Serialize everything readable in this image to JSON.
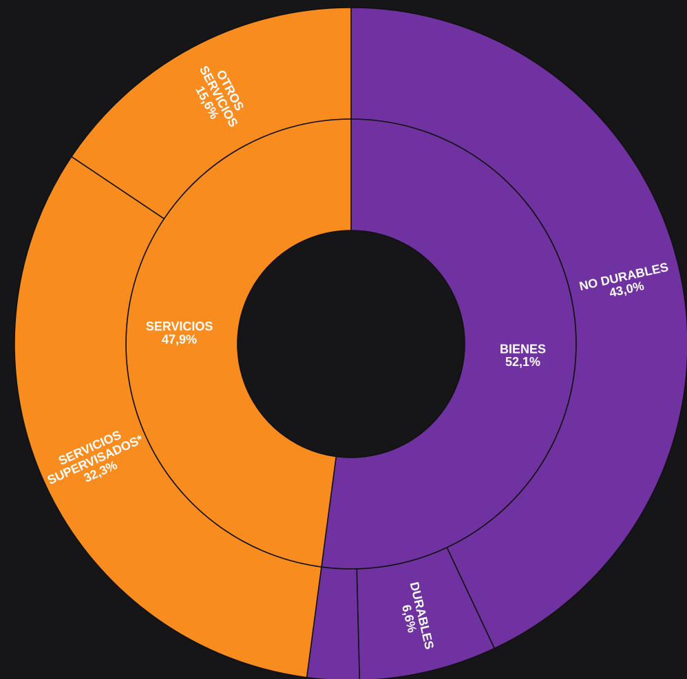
{
  "chart_data": {
    "type": "sunburst",
    "rings": [
      {
        "categories": [
          "BIENES",
          "SERVICIOS"
        ],
        "values": [
          52.1,
          47.9
        ],
        "value_labels": [
          "52,1%",
          "47,9%"
        ],
        "colors": [
          "#6f32a0",
          "#f88c1f"
        ]
      },
      {
        "categories": [
          "NO DURABLES",
          "DURABLES",
          null,
          "SERVICIOS\nSUPERVISADOS*",
          "OTROS\nSERVICIOS"
        ],
        "values": [
          43.0,
          6.6,
          2.5,
          32.3,
          15.6
        ],
        "value_labels": [
          "43,0%",
          "6,6%",
          null,
          "32,3%",
          "15,6%"
        ],
        "colors": [
          "#6f32a0",
          "#6f32a0",
          "#6f32a0",
          "#f88c1f",
          "#f88c1f"
        ]
      }
    ]
  }
}
